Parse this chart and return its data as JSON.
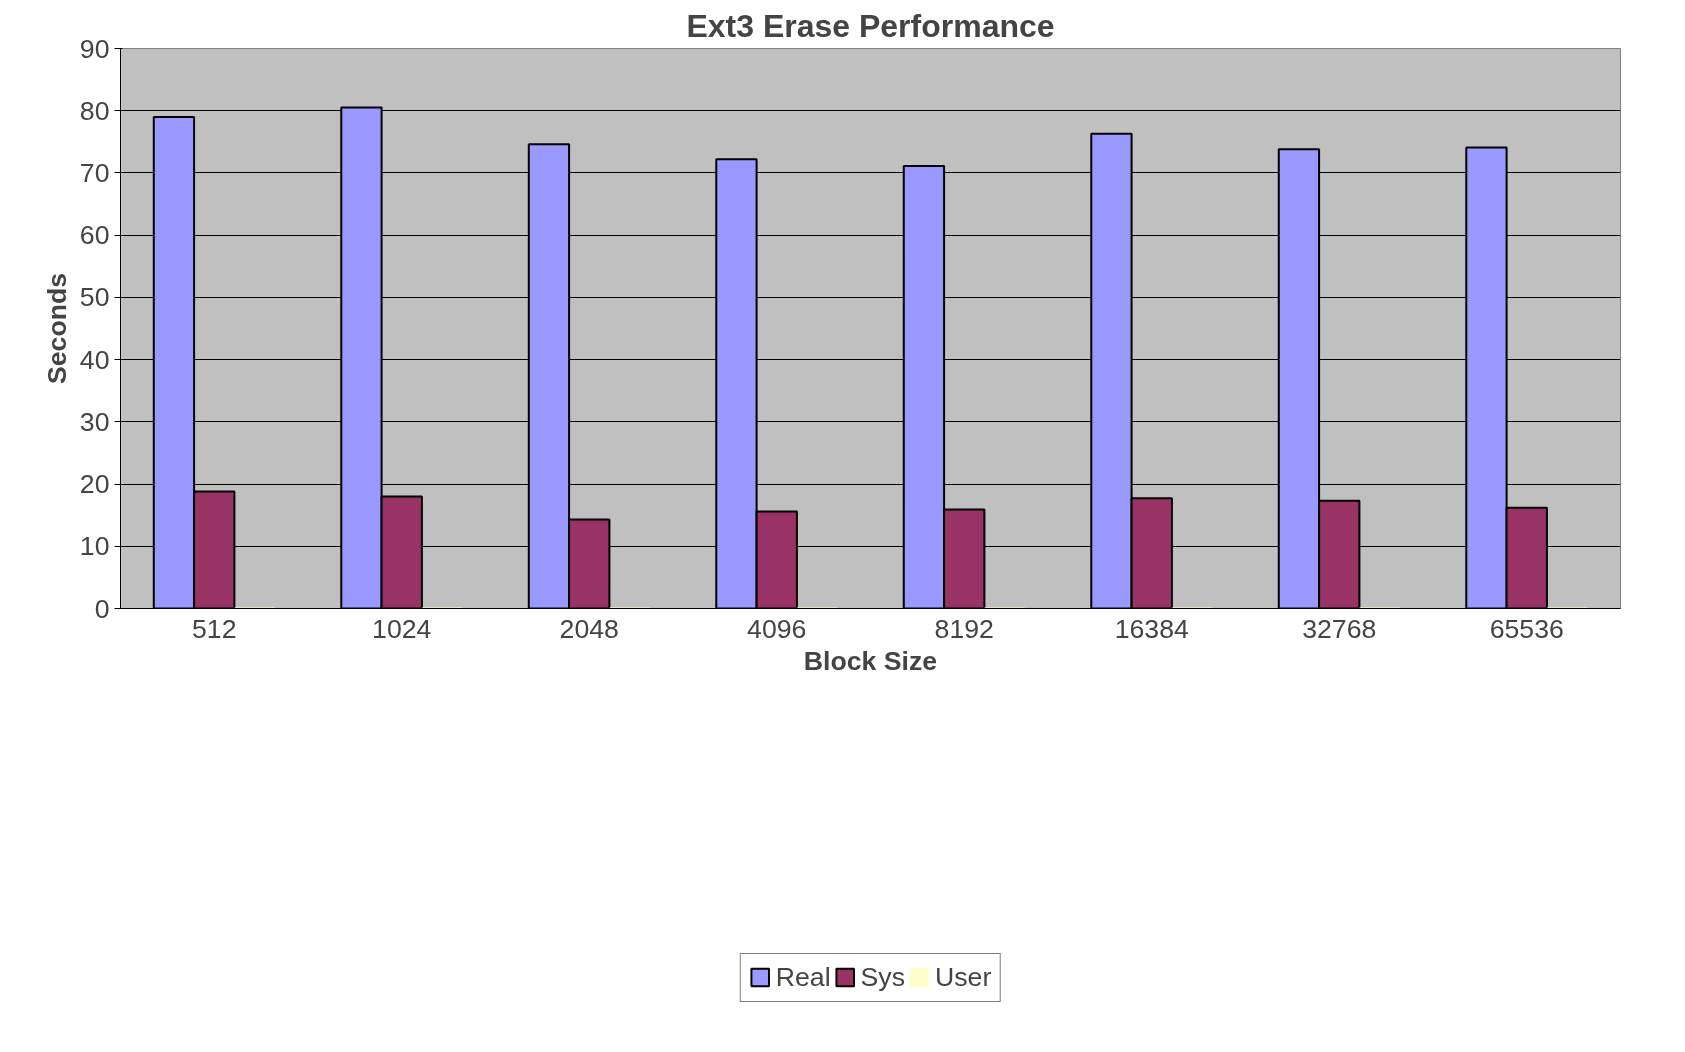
{
  "chart_data": {
    "type": "bar",
    "title": "Ext3 Erase Performance",
    "xlabel": "Block Size",
    "ylabel": "Seconds",
    "categories": [
      "512",
      "1024",
      "2048",
      "4096",
      "8192",
      "16384",
      "32768",
      "65536"
    ],
    "series": [
      {
        "name": "Real",
        "color": "#9999ff",
        "values": [
          79.0,
          80.5,
          74.6,
          72.2,
          71.1,
          76.3,
          73.8,
          74.1
        ]
      },
      {
        "name": "Sys",
        "color": "#993366",
        "values": [
          18.8,
          18.0,
          14.3,
          15.6,
          15.9,
          17.7,
          17.3,
          16.2
        ]
      },
      {
        "name": "User",
        "color": "#ffffcc",
        "values": [
          0,
          0,
          0,
          0,
          0,
          0,
          0,
          0
        ]
      }
    ],
    "ylim": [
      0,
      90
    ],
    "yticks": [
      0,
      10,
      20,
      30,
      40,
      50,
      60,
      70,
      80,
      90
    ],
    "grid": "y",
    "legend": "bottom"
  }
}
